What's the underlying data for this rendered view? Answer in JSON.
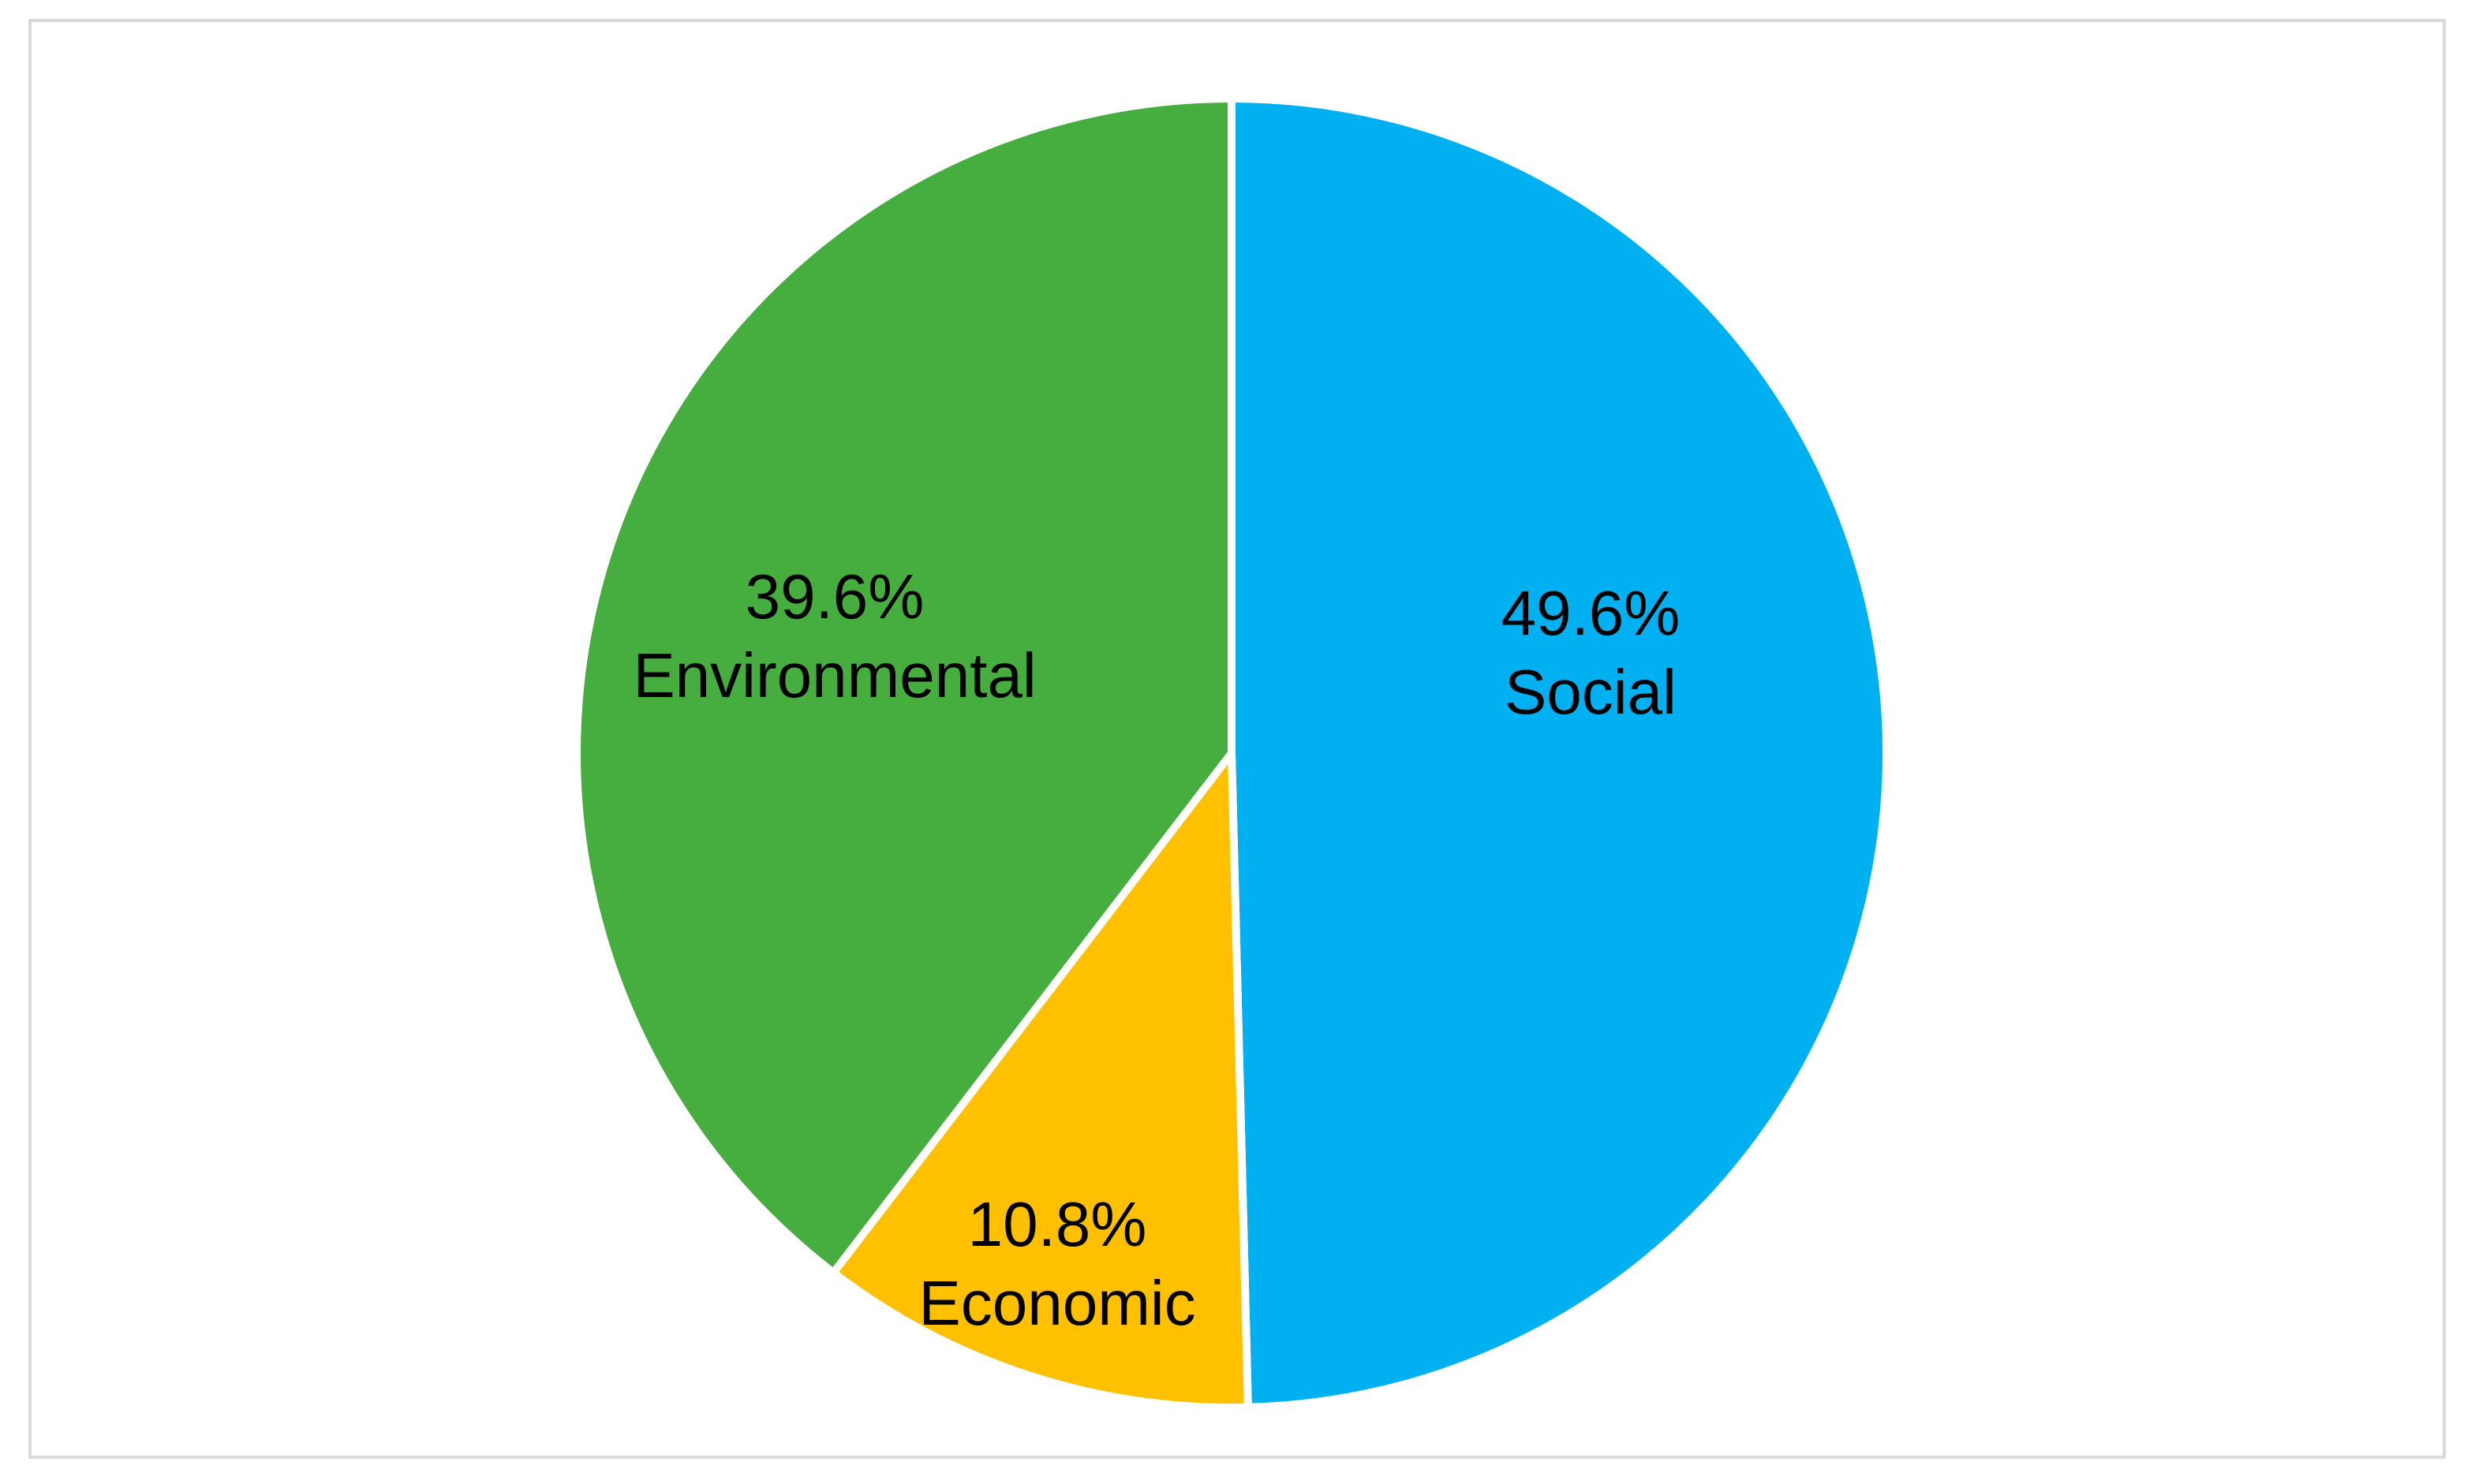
{
  "chart_data": {
    "type": "pie",
    "start_angle_deg": 0,
    "direction": "clockwise",
    "slices": [
      {
        "label": "Social",
        "percent_text": "49.6%",
        "value": 49.6,
        "color": "#00B0F0"
      },
      {
        "label": "Economic",
        "percent_text": "10.8%",
        "value": 10.8,
        "color": "#FFC000"
      },
      {
        "label": "Environmental",
        "percent_text": "39.6%",
        "value": 39.6,
        "color": "#46AE3E"
      }
    ],
    "separator_color": "#ffffff",
    "border_color": "#d9d9d9",
    "title": "",
    "legend": "none"
  }
}
